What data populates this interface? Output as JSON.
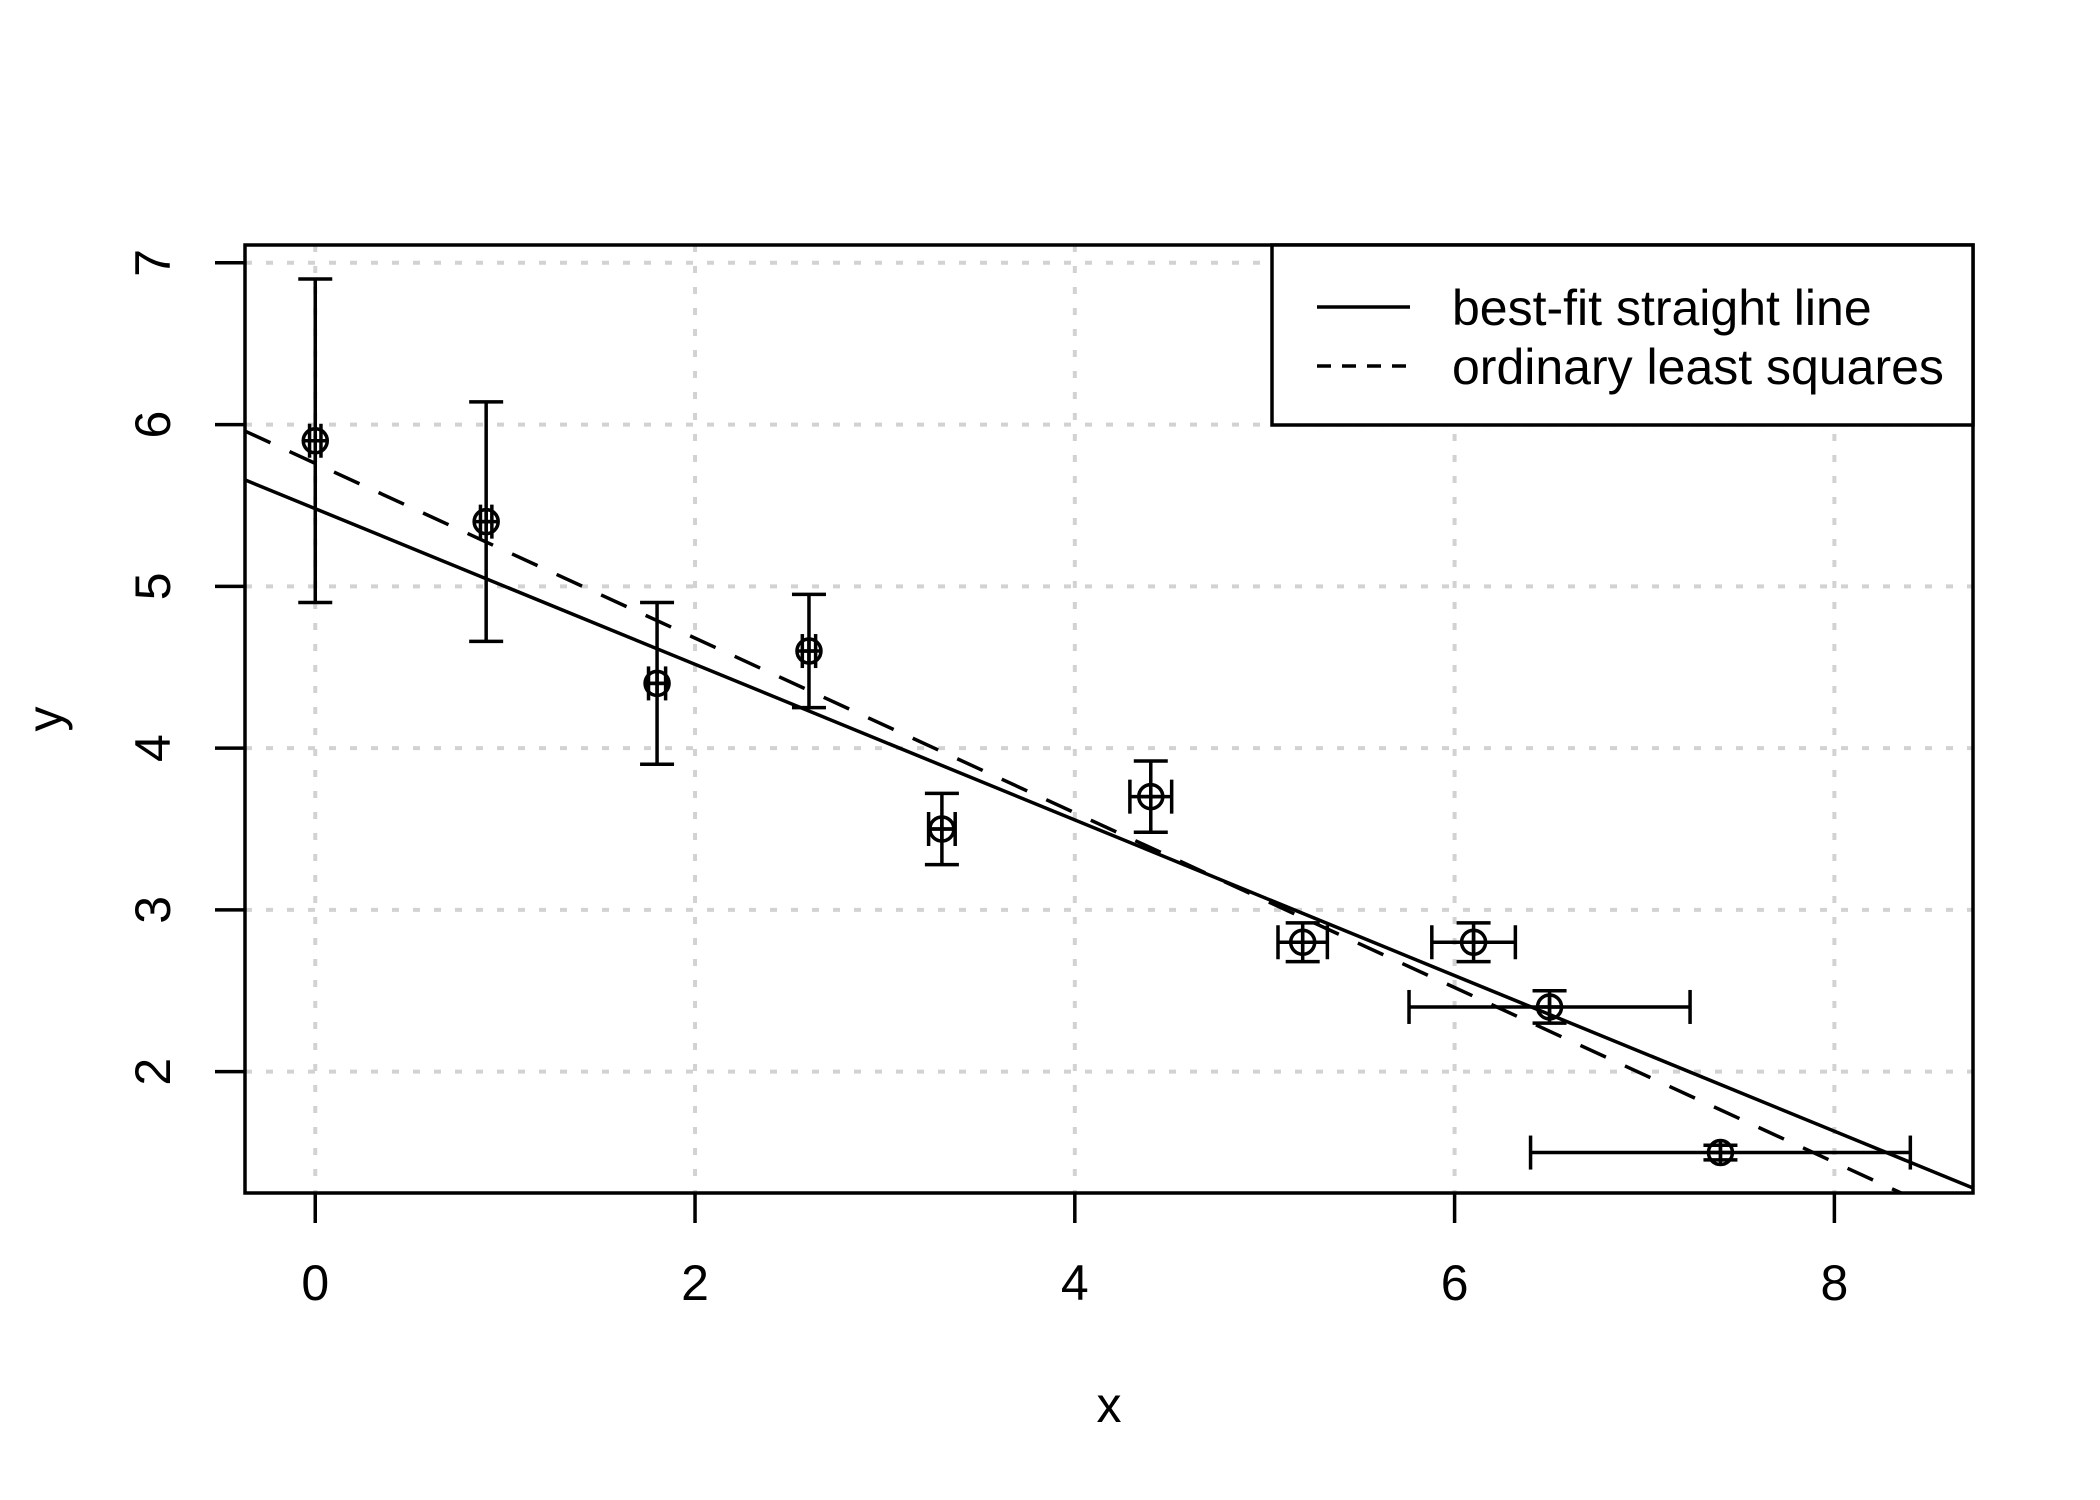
{
  "chart_data": {
    "type": "scatter",
    "title": "",
    "xlabel": "x",
    "ylabel": "y",
    "xlim": [
      -0.37,
      8.73
    ],
    "ylim": [
      1.25,
      7.11
    ],
    "x_ticks": [
      0,
      2,
      4,
      6,
      8
    ],
    "y_ticks": [
      2,
      3,
      4,
      5,
      6,
      7
    ],
    "grid": {
      "show": true,
      "style": "dotted",
      "color": "#d2d2d2"
    },
    "marker": "circle-plus-open",
    "points": [
      {
        "x": 0.0,
        "y": 5.9,
        "x_err": 0.03,
        "y_err": 1.0
      },
      {
        "x": 0.9,
        "y": 5.4,
        "x_err": 0.03,
        "y_err": 0.74
      },
      {
        "x": 1.8,
        "y": 4.4,
        "x_err": 0.045,
        "y_err": 0.5
      },
      {
        "x": 2.6,
        "y": 4.6,
        "x_err": 0.035,
        "y_err": 0.35
      },
      {
        "x": 3.3,
        "y": 3.5,
        "x_err": 0.07,
        "y_err": 0.22
      },
      {
        "x": 4.4,
        "y": 3.7,
        "x_err": 0.11,
        "y_err": 0.22
      },
      {
        "x": 5.2,
        "y": 2.8,
        "x_err": 0.13,
        "y_err": 0.12
      },
      {
        "x": 6.1,
        "y": 2.8,
        "x_err": 0.22,
        "y_err": 0.12
      },
      {
        "x": 6.5,
        "y": 2.4,
        "x_err": 0.74,
        "y_err": 0.1
      },
      {
        "x": 7.4,
        "y": 1.5,
        "x_err": 1.0,
        "y_err": 0.045
      }
    ],
    "series": [
      {
        "name": "best-fit straight line",
        "type": "line",
        "style": "solid",
        "intercept": 5.48,
        "slope": -0.481
      },
      {
        "name": "ordinary least squares",
        "type": "line",
        "style": "dashed",
        "intercept": 5.76,
        "slope": -0.54
      }
    ],
    "legend": {
      "position": "topright",
      "entries": [
        {
          "label": "best-fit straight line",
          "line_style": "solid"
        },
        {
          "label": "ordinary least squares",
          "line_style": "dashed"
        }
      ]
    },
    "colors": {
      "foreground": "#000000",
      "background": "#ffffff",
      "grid": "#d2d2d2"
    }
  }
}
